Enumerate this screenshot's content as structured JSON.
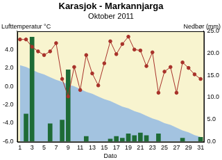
{
  "chart_data": {
    "type": "bar",
    "title": "Karasjok - Markannjarga",
    "subtitle": "Oktober 2011",
    "y_label": "Lufttemperatur °C",
    "y2_label": "Nedbør (mm)",
    "x_label": "Dato",
    "categories": [
      "1",
      null,
      "3",
      null,
      "5",
      null,
      "7",
      null,
      "9",
      null,
      "11",
      null,
      "13",
      null,
      "15",
      null,
      "17",
      null,
      "19",
      null,
      "21",
      null,
      "23",
      null,
      "25",
      null,
      "27",
      null,
      "29",
      null,
      "31"
    ],
    "ylim": [
      -6,
      6
    ],
    "yticks": [
      {
        "value": -6,
        "label": "-6.0"
      },
      {
        "value": -4,
        "label": "-4.0"
      },
      {
        "value": -2,
        "label": "-2.0"
      },
      {
        "value": 0,
        "label": "0.0"
      },
      {
        "value": 2,
        "label": "2.0"
      },
      {
        "value": 4,
        "label": "4.0"
      }
    ],
    "y2lim": [
      0,
      25
    ],
    "y2ticks": [
      {
        "value": 0,
        "label": "0.0"
      },
      {
        "value": 5,
        "label": "5.0"
      },
      {
        "value": 10,
        "label": "10.0"
      },
      {
        "value": 15,
        "label": "15.0"
      },
      {
        "value": 20,
        "label": "20.0"
      },
      {
        "value": 25,
        "label": "25.0"
      }
    ],
    "grid": false,
    "series": [
      {
        "type": "area",
        "color": "#a3c3e0",
        "values": [
          2.3,
          2.1,
          1.8,
          1.5,
          1.3,
          1.0,
          0.7,
          0.5,
          0.2,
          0.0,
          -0.3,
          -0.6,
          -0.8,
          -1.1,
          -1.4,
          -1.6,
          -1.9,
          -2.2,
          -2.4,
          -2.7,
          -2.9,
          -3.2,
          -3.5,
          -3.7,
          -4.0,
          -4.2,
          -4.5,
          -4.8,
          -5.0,
          -5.3,
          -5.5
        ]
      },
      {
        "type": "bar",
        "axis": "y2",
        "color": "#1e6b36",
        "values": [
          0,
          6.3,
          23.7,
          0,
          0,
          4.1,
          0,
          4.9,
          16.3,
          0,
          0,
          1.2,
          0,
          0,
          0,
          0.6,
          1.2,
          0.8,
          1.8,
          1.4,
          2.0,
          1.4,
          0,
          1.8,
          0,
          0,
          0,
          0.8,
          0,
          0,
          1.0
        ]
      },
      {
        "type": "line",
        "marker": "circle",
        "color": "#a8322a",
        "values": [
          5.1,
          5.1,
          4.3,
          3.8,
          3.4,
          3.8,
          4.7,
          0.8,
          -1.1,
          2.1,
          -0.4,
          3.4,
          1.4,
          0.1,
          2.5,
          4.9,
          3.5,
          4.6,
          5.4,
          4.0,
          3.9,
          2.2,
          3.7,
          -0.7,
          1.6,
          2.1,
          -0.7,
          2.6,
          2.0,
          1.3,
          0.8
        ]
      }
    ]
  }
}
